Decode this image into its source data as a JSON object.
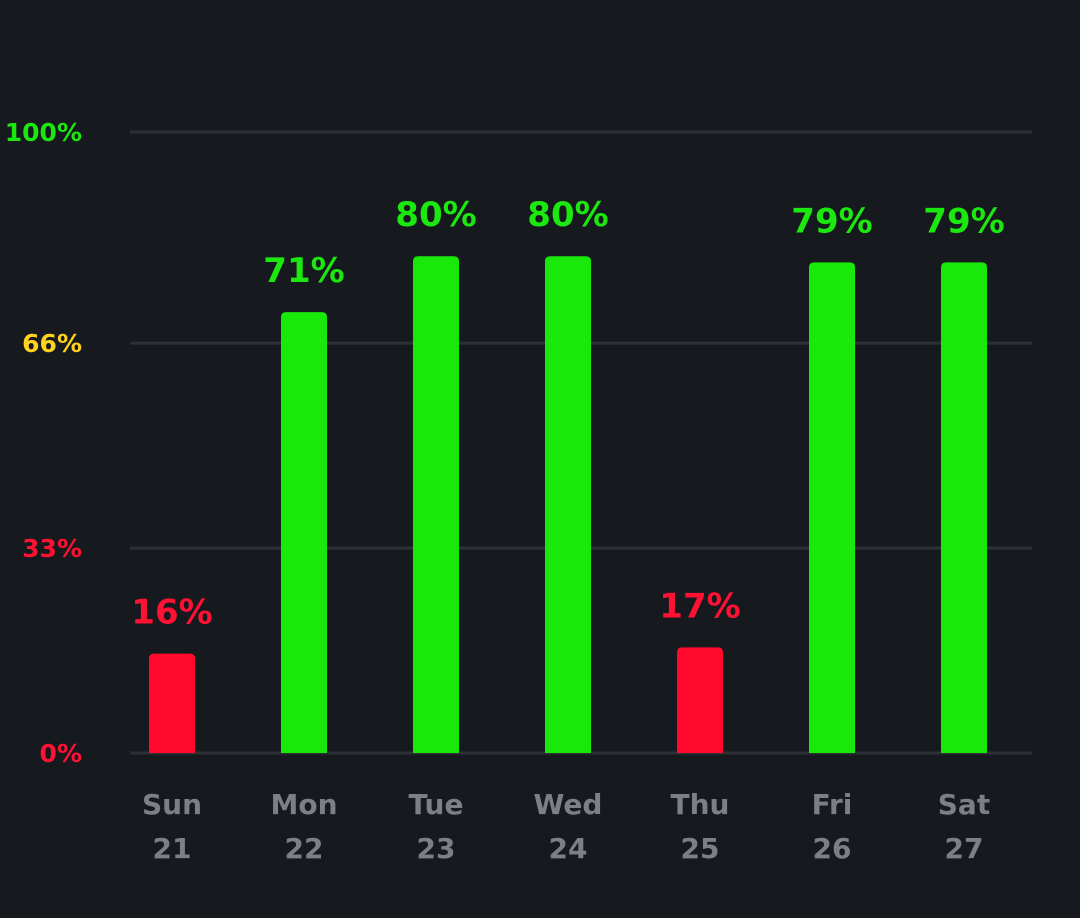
{
  "chart_data": {
    "type": "bar",
    "title": "",
    "xlabel": "",
    "ylabel": "",
    "ylim": [
      0,
      100
    ],
    "grid": true,
    "y_ticks": [
      {
        "value": 0,
        "label": "0%",
        "color": "#ff1133"
      },
      {
        "value": 33,
        "label": "33%",
        "color": "#ff1133"
      },
      {
        "value": 66,
        "label": "66%",
        "color": "#ffd21f"
      },
      {
        "value": 100,
        "label": "100%",
        "color": "#1be80f"
      }
    ],
    "categories": [
      {
        "day": "Sun",
        "date": "21"
      },
      {
        "day": "Mon",
        "date": "22"
      },
      {
        "day": "Tue",
        "date": "23"
      },
      {
        "day": "Wed",
        "date": "24"
      },
      {
        "day": "Thu",
        "date": "25"
      },
      {
        "day": "Fri",
        "date": "26"
      },
      {
        "day": "Sat",
        "date": "27"
      }
    ],
    "values": [
      16,
      71,
      80,
      80,
      17,
      79,
      79
    ],
    "value_labels": [
      "16%",
      "71%",
      "80%",
      "80%",
      "17%",
      "79%",
      "79%"
    ],
    "bar_colors": [
      "#ff0a2c",
      "#19e80b",
      "#19e80b",
      "#19e80b",
      "#ff0a2c",
      "#19e80b",
      "#19e80b"
    ],
    "label_colors": [
      "#ff1133",
      "#1be80f",
      "#1be80f",
      "#1be80f",
      "#ff1133",
      "#1be80f",
      "#1be80f"
    ],
    "grid_color": "#2c3034",
    "category_label_color": "#7c7f84"
  }
}
